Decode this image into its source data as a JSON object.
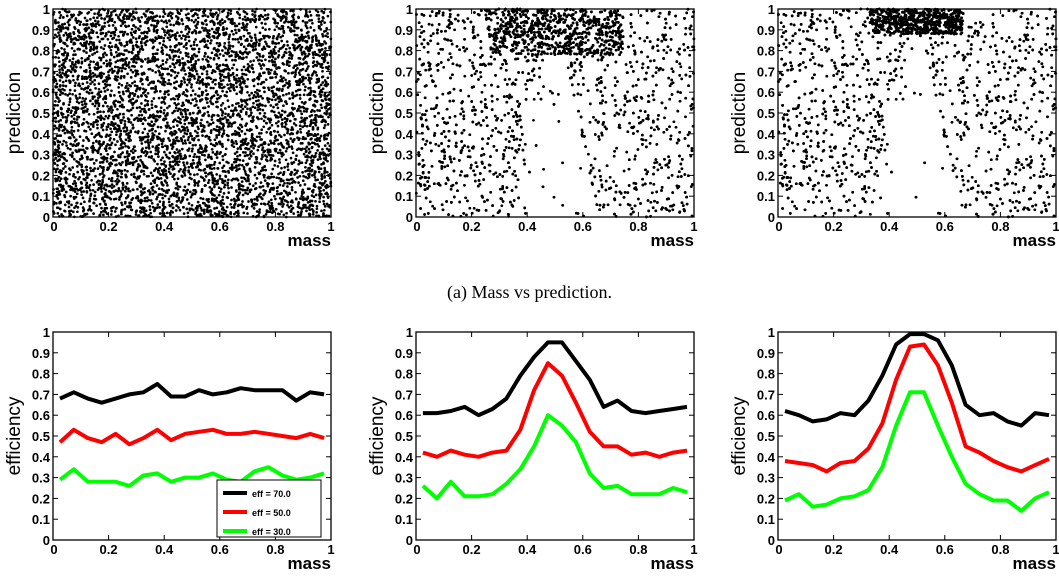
{
  "caption": "(a) Mass vs prediction.",
  "chart_data": [
    {
      "type": "scatter",
      "xlabel": "mass",
      "ylabel": "prediction",
      "xlim": [
        0,
        1
      ],
      "ylim": [
        0,
        1
      ],
      "xticks": [
        "0",
        "0.2",
        "0.4",
        "0.6",
        "0.8",
        "1"
      ],
      "yticks": [
        "0",
        "0.1",
        "0.2",
        "0.3",
        "0.4",
        "0.5",
        "0.6",
        "0.7",
        "0.8",
        "0.9",
        "1"
      ],
      "distribution": "uniform over mass and prediction",
      "marker_color": "#000000"
    },
    {
      "type": "scatter",
      "xlabel": "mass",
      "ylabel": "prediction",
      "xlim": [
        0,
        1
      ],
      "ylim": [
        0,
        1
      ],
      "xticks": [
        "0",
        "0.2",
        "0.4",
        "0.6",
        "0.8",
        "1"
      ],
      "yticks": [
        "0",
        "0.1",
        "0.2",
        "0.3",
        "0.4",
        "0.5",
        "0.6",
        "0.7",
        "0.8",
        "0.9",
        "1"
      ],
      "distribution": "signal cluster near mass 0.5, prediction 0.8-1.0; background depleted below that in mass 0.35-0.65",
      "marker_color": "#000000"
    },
    {
      "type": "scatter",
      "xlabel": "mass",
      "ylabel": "prediction",
      "xlim": [
        0,
        1
      ],
      "ylim": [
        0,
        1
      ],
      "xticks": [
        "0",
        "0.2",
        "0.4",
        "0.6",
        "0.8",
        "1"
      ],
      "yticks": [
        "0",
        "0.1",
        "0.2",
        "0.3",
        "0.4",
        "0.5",
        "0.6",
        "0.7",
        "0.8",
        "0.9",
        "1"
      ],
      "distribution": "dense signal cluster near mass 0.5, prediction 0.9-1.0; wide triangular gap below in mass 0.35-0.65",
      "marker_color": "#000000"
    },
    {
      "type": "line",
      "xlabel": "mass",
      "ylabel": "efficiency",
      "xlim": [
        0,
        1
      ],
      "ylim": [
        0,
        1
      ],
      "xticks": [
        "0",
        "0.2",
        "0.4",
        "0.6",
        "0.8",
        "1"
      ],
      "yticks": [
        "0",
        "0.1",
        "0.2",
        "0.3",
        "0.4",
        "0.5",
        "0.6",
        "0.7",
        "0.8",
        "0.9",
        "1"
      ],
      "legend_position": "bottom-right",
      "x": [
        0.025,
        0.075,
        0.125,
        0.175,
        0.225,
        0.275,
        0.325,
        0.375,
        0.425,
        0.475,
        0.525,
        0.575,
        0.625,
        0.675,
        0.725,
        0.775,
        0.825,
        0.875,
        0.925,
        0.975
      ],
      "series": [
        {
          "name": "eff = 70.0",
          "color": "#000000",
          "values": [
            0.68,
            0.71,
            0.68,
            0.66,
            0.68,
            0.7,
            0.71,
            0.75,
            0.69,
            0.69,
            0.72,
            0.7,
            0.71,
            0.73,
            0.72,
            0.72,
            0.72,
            0.67,
            0.71,
            0.7
          ]
        },
        {
          "name": "eff = 50.0",
          "color": "#ff0000",
          "values": [
            0.47,
            0.53,
            0.49,
            0.47,
            0.51,
            0.46,
            0.49,
            0.53,
            0.48,
            0.51,
            0.52,
            0.53,
            0.51,
            0.51,
            0.52,
            0.51,
            0.5,
            0.49,
            0.51,
            0.49
          ]
        },
        {
          "name": "eff = 30.0",
          "color": "#00ff00",
          "values": [
            0.29,
            0.34,
            0.28,
            0.28,
            0.28,
            0.26,
            0.31,
            0.32,
            0.28,
            0.3,
            0.3,
            0.32,
            0.29,
            0.28,
            0.33,
            0.35,
            0.31,
            0.29,
            0.3,
            0.32
          ]
        }
      ]
    },
    {
      "type": "line",
      "xlabel": "mass",
      "ylabel": "efficiency",
      "xlim": [
        0,
        1
      ],
      "ylim": [
        0,
        1
      ],
      "xticks": [
        "0",
        "0.2",
        "0.4",
        "0.6",
        "0.8",
        "1"
      ],
      "yticks": [
        "0",
        "0.1",
        "0.2",
        "0.3",
        "0.4",
        "0.5",
        "0.6",
        "0.7",
        "0.8",
        "0.9",
        "1"
      ],
      "x": [
        0.025,
        0.075,
        0.125,
        0.175,
        0.225,
        0.275,
        0.325,
        0.375,
        0.425,
        0.475,
        0.525,
        0.575,
        0.625,
        0.675,
        0.725,
        0.775,
        0.825,
        0.875,
        0.925,
        0.975
      ],
      "series": [
        {
          "color": "#000000",
          "values": [
            0.61,
            0.61,
            0.62,
            0.64,
            0.6,
            0.63,
            0.68,
            0.79,
            0.88,
            0.95,
            0.95,
            0.86,
            0.77,
            0.64,
            0.67,
            0.62,
            0.61,
            0.62,
            0.63,
            0.64
          ]
        },
        {
          "color": "#ff0000",
          "values": [
            0.42,
            0.4,
            0.43,
            0.41,
            0.4,
            0.42,
            0.43,
            0.53,
            0.72,
            0.85,
            0.79,
            0.66,
            0.52,
            0.45,
            0.45,
            0.41,
            0.42,
            0.4,
            0.42,
            0.43
          ]
        },
        {
          "color": "#00ff00",
          "values": [
            0.26,
            0.2,
            0.28,
            0.21,
            0.21,
            0.22,
            0.27,
            0.34,
            0.45,
            0.6,
            0.55,
            0.47,
            0.32,
            0.25,
            0.26,
            0.22,
            0.22,
            0.22,
            0.25,
            0.23
          ]
        }
      ]
    },
    {
      "type": "line",
      "xlabel": "mass",
      "ylabel": "efficiency",
      "xlim": [
        0,
        1
      ],
      "ylim": [
        0,
        1
      ],
      "xticks": [
        "0",
        "0.2",
        "0.4",
        "0.6",
        "0.8",
        "1"
      ],
      "yticks": [
        "0",
        "0.1",
        "0.2",
        "0.3",
        "0.4",
        "0.5",
        "0.6",
        "0.7",
        "0.8",
        "0.9",
        "1"
      ],
      "x": [
        0.025,
        0.075,
        0.125,
        0.175,
        0.225,
        0.275,
        0.325,
        0.375,
        0.425,
        0.475,
        0.525,
        0.575,
        0.625,
        0.675,
        0.725,
        0.775,
        0.825,
        0.875,
        0.925,
        0.975
      ],
      "series": [
        {
          "color": "#000000",
          "values": [
            0.62,
            0.6,
            0.57,
            0.58,
            0.61,
            0.6,
            0.67,
            0.79,
            0.94,
            0.99,
            0.99,
            0.96,
            0.84,
            0.65,
            0.6,
            0.61,
            0.57,
            0.55,
            0.61,
            0.6
          ]
        },
        {
          "color": "#ff0000",
          "values": [
            0.38,
            0.37,
            0.36,
            0.33,
            0.37,
            0.38,
            0.44,
            0.56,
            0.77,
            0.93,
            0.94,
            0.84,
            0.66,
            0.45,
            0.42,
            0.38,
            0.35,
            0.33,
            0.36,
            0.39
          ]
        },
        {
          "color": "#00ff00",
          "values": [
            0.19,
            0.22,
            0.16,
            0.17,
            0.2,
            0.21,
            0.24,
            0.35,
            0.55,
            0.71,
            0.71,
            0.55,
            0.4,
            0.27,
            0.22,
            0.19,
            0.19,
            0.14,
            0.2,
            0.23
          ]
        }
      ]
    }
  ]
}
